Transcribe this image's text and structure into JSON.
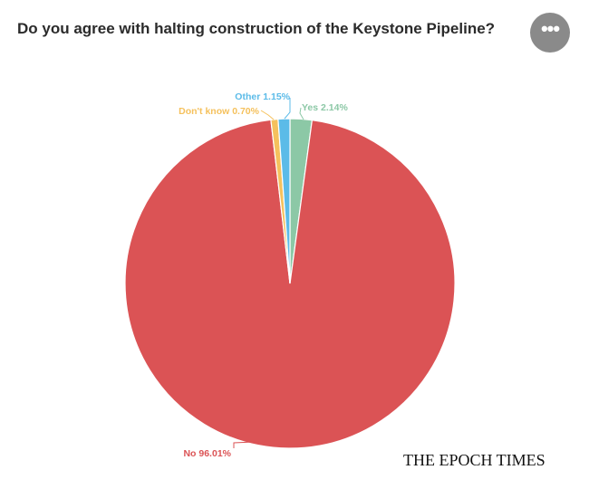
{
  "header": {
    "title": "Do you agree with halting construction of the Keystone Pipeline?",
    "menu_icon": "more-horizontal-icon",
    "menu_label": "•••"
  },
  "brand": {
    "text": "THE EPOCH TIMES"
  },
  "chart_data": {
    "type": "pie",
    "title": "Do you agree with halting construction of the Keystone Pipeline?",
    "slices": [
      {
        "label": "Yes",
        "value": 2.14,
        "display": "Yes 2.14%",
        "color": "#8cc8a6"
      },
      {
        "label": "No",
        "value": 96.01,
        "display": "No 96.01%",
        "color": "#db5355"
      },
      {
        "label": "Don't know",
        "value": 0.7,
        "display": "Don't know 0.70%",
        "color": "#f5c15d"
      },
      {
        "label": "Other",
        "value": 1.15,
        "display": "Other 1.15%",
        "color": "#5bbbe8"
      }
    ]
  }
}
